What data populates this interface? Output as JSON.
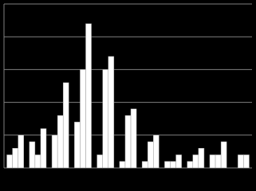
{
  "chart_data": {
    "type": "bar",
    "categories": [
      null,
      null,
      null,
      null,
      null,
      null,
      null,
      null,
      null,
      null,
      null
    ],
    "series": [
      {
        "color": "#ffffff",
        "values": [
          4,
          8,
          10,
          14,
          4,
          2,
          2,
          2,
          2,
          4,
          0
        ]
      },
      {
        "color": "#ffffff",
        "values": [
          6,
          4,
          16,
          30,
          30,
          16,
          8,
          2,
          4,
          4,
          4
        ]
      },
      {
        "color": "#ffffff",
        "values": [
          10,
          12,
          26,
          44,
          34,
          18,
          10,
          4,
          6,
          8,
          4
        ]
      }
    ],
    "ylim": [
      0,
      50
    ],
    "yticks": [
      0,
      10,
      20,
      30,
      40,
      50
    ],
    "grid": true,
    "background": "#000000",
    "grid_color": "#808080"
  }
}
